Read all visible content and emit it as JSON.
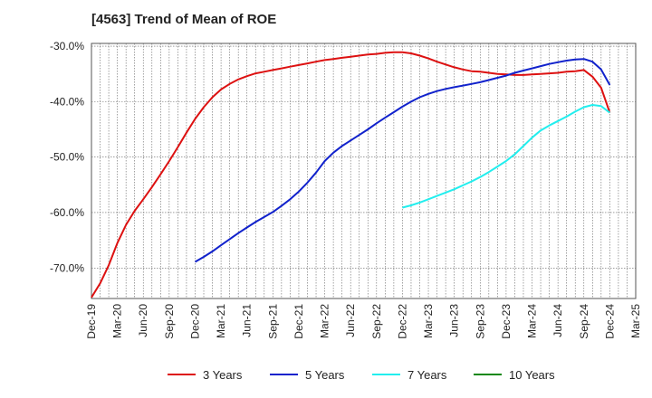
{
  "chart_data": {
    "type": "line",
    "title": "[4563]  Trend of Mean of ROE",
    "xlabel": "",
    "ylabel": "",
    "x_ticks": [
      "Dec-19",
      "Mar-20",
      "Jun-20",
      "Sep-20",
      "Dec-20",
      "Mar-21",
      "Jun-21",
      "Sep-21",
      "Dec-21",
      "Mar-22",
      "Jun-22",
      "Sep-22",
      "Dec-22",
      "Mar-23",
      "Jun-23",
      "Sep-23",
      "Dec-23",
      "Mar-24",
      "Jun-24",
      "Sep-24",
      "Dec-24",
      "Mar-25"
    ],
    "y_ticks": [
      {
        "value": -30,
        "label": "-30.0%"
      },
      {
        "value": -40,
        "label": "-40.0%"
      },
      {
        "value": -50,
        "label": "-50.0%"
      },
      {
        "value": -60,
        "label": "-60.0%"
      },
      {
        "value": -70,
        "label": "-70.0%"
      }
    ],
    "ylim": [
      -75.5,
      -29.5
    ],
    "grid": true,
    "legend_position": "bottom",
    "series": [
      {
        "name": "3 Years",
        "color": "#dd1111",
        "x": [
          "Dec-19",
          "Jan-20",
          "Feb-20",
          "Mar-20",
          "Apr-20",
          "May-20",
          "Jun-20",
          "Jul-20",
          "Aug-20",
          "Sep-20",
          "Oct-20",
          "Nov-20",
          "Dec-20",
          "Jan-21",
          "Feb-21",
          "Mar-21",
          "Apr-21",
          "May-21",
          "Jun-21",
          "Jul-21",
          "Aug-21",
          "Sep-21",
          "Oct-21",
          "Nov-21",
          "Dec-21",
          "Jan-22",
          "Feb-22",
          "Mar-22",
          "Apr-22",
          "May-22",
          "Jun-22",
          "Jul-22",
          "Aug-22",
          "Sep-22",
          "Oct-22",
          "Nov-22",
          "Dec-22",
          "Jan-23",
          "Feb-23",
          "Mar-23",
          "Apr-23",
          "May-23",
          "Jun-23",
          "Jul-23",
          "Aug-23",
          "Sep-23",
          "Oct-23",
          "Nov-23",
          "Dec-23",
          "Jan-24",
          "Feb-24",
          "Mar-24",
          "Apr-24",
          "May-24",
          "Jun-24",
          "Jul-24",
          "Aug-24",
          "Sep-24",
          "Oct-24",
          "Nov-24",
          "Dec-24"
        ],
        "values": [
          -75.3,
          -72.8,
          -69.5,
          -65.5,
          -62.2,
          -59.7,
          -57.6,
          -55.4,
          -53.1,
          -50.7,
          -48.2,
          -45.6,
          -43.1,
          -41.0,
          -39.2,
          -37.8,
          -36.8,
          -36.0,
          -35.4,
          -34.9,
          -34.6,
          -34.3,
          -34.0,
          -33.7,
          -33.4,
          -33.1,
          -32.8,
          -32.5,
          -32.3,
          -32.1,
          -31.9,
          -31.7,
          -31.5,
          -31.4,
          -31.2,
          -31.1,
          -31.1,
          -31.3,
          -31.7,
          -32.2,
          -32.8,
          -33.3,
          -33.8,
          -34.2,
          -34.5,
          -34.6,
          -34.8,
          -35.0,
          -35.1,
          -35.2,
          -35.2,
          -35.1,
          -35.0,
          -34.9,
          -34.8,
          -34.6,
          -34.5,
          -34.3,
          -35.5,
          -37.5,
          -42.0
        ]
      },
      {
        "name": "5 Years",
        "color": "#1122cc",
        "x": [
          "Dec-20",
          "Jan-21",
          "Feb-21",
          "Mar-21",
          "Apr-21",
          "May-21",
          "Jun-21",
          "Jul-21",
          "Aug-21",
          "Sep-21",
          "Oct-21",
          "Nov-21",
          "Dec-21",
          "Jan-22",
          "Feb-22",
          "Mar-22",
          "Apr-22",
          "May-22",
          "Jun-22",
          "Jul-22",
          "Aug-22",
          "Sep-22",
          "Oct-22",
          "Nov-22",
          "Dec-22",
          "Jan-23",
          "Feb-23",
          "Mar-23",
          "Apr-23",
          "May-23",
          "Jun-23",
          "Jul-23",
          "Aug-23",
          "Sep-23",
          "Oct-23",
          "Nov-23",
          "Dec-23",
          "Jan-24",
          "Feb-24",
          "Mar-24",
          "Apr-24",
          "May-24",
          "Jun-24",
          "Jul-24",
          "Aug-24",
          "Sep-24",
          "Oct-24",
          "Nov-24",
          "Dec-24"
        ],
        "values": [
          -68.9,
          -68.0,
          -67.0,
          -65.9,
          -64.8,
          -63.7,
          -62.7,
          -61.7,
          -60.8,
          -59.9,
          -58.8,
          -57.6,
          -56.2,
          -54.6,
          -52.8,
          -50.7,
          -49.2,
          -48.0,
          -47.0,
          -46.0,
          -45.0,
          -43.9,
          -42.9,
          -41.9,
          -40.9,
          -40.0,
          -39.2,
          -38.6,
          -38.1,
          -37.7,
          -37.4,
          -37.1,
          -36.8,
          -36.5,
          -36.1,
          -35.7,
          -35.3,
          -34.8,
          -34.4,
          -34.0,
          -33.6,
          -33.2,
          -32.9,
          -32.6,
          -32.4,
          -32.3,
          -32.8,
          -34.2,
          -37.0
        ]
      },
      {
        "name": "7 Years",
        "color": "#22eeee",
        "x": [
          "Dec-22",
          "Jan-23",
          "Feb-23",
          "Mar-23",
          "Apr-23",
          "May-23",
          "Jun-23",
          "Jul-23",
          "Aug-23",
          "Sep-23",
          "Oct-23",
          "Nov-23",
          "Dec-23",
          "Jan-24",
          "Feb-24",
          "Mar-24",
          "Apr-24",
          "May-24",
          "Jun-24",
          "Jul-24",
          "Aug-24",
          "Sep-24",
          "Oct-24",
          "Nov-24",
          "Dec-24"
        ],
        "values": [
          -59.1,
          -58.7,
          -58.2,
          -57.6,
          -57.0,
          -56.4,
          -55.8,
          -55.1,
          -54.4,
          -53.6,
          -52.7,
          -51.7,
          -50.7,
          -49.5,
          -48.0,
          -46.5,
          -45.2,
          -44.3,
          -43.5,
          -42.7,
          -41.8,
          -41.0,
          -40.6,
          -40.8,
          -42.0
        ]
      },
      {
        "name": "10 Years",
        "color": "#118811",
        "x": [],
        "values": []
      }
    ]
  }
}
